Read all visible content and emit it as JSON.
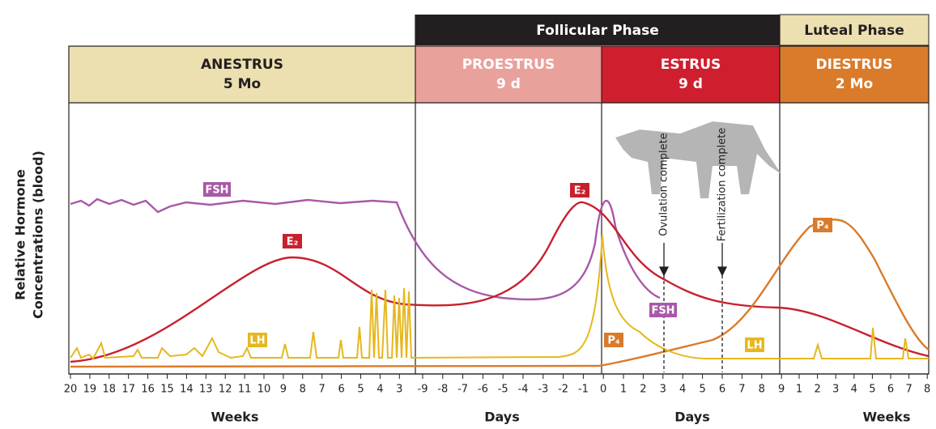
{
  "phases": [
    {
      "label": "Follicular Phase"
    },
    {
      "label": "Luteal Phase"
    }
  ],
  "stages": [
    {
      "name": "ANESTRUS",
      "duration": "5 Mo"
    },
    {
      "name": "PROESTRUS",
      "duration": "9 d"
    },
    {
      "name": "ESTRUS",
      "duration": "9 d"
    },
    {
      "name": "DIESTRUS",
      "duration": "2 Mo"
    }
  ],
  "y_axis_label": [
    "Relative Hormone",
    "Concentrations (blood)"
  ],
  "hormone_labels": [
    "FSH",
    "E₂",
    "LH",
    "E₂",
    "FSH",
    "P₄",
    "LH",
    "P₄"
  ],
  "annotations": [
    "Ovulation complete",
    "Fertilization complete"
  ],
  "axis": {
    "segments": [
      {
        "title": "Weeks",
        "ticks": [
          "20",
          "19",
          "18",
          "17",
          "16",
          "15",
          "14",
          "13",
          "12",
          "11",
          "10",
          "9",
          "8",
          "7",
          "6",
          "5",
          "4",
          "3"
        ]
      },
      {
        "title": "Days",
        "ticks": [
          "-9",
          "-8",
          "-7",
          "-6",
          "-5",
          "-4",
          "-3",
          "-2",
          "-1",
          "0"
        ]
      },
      {
        "title": "Days",
        "ticks": [
          "1",
          "2",
          "3",
          "4",
          "5",
          "6",
          "7",
          "8",
          "9"
        ]
      },
      {
        "title": "Weeks",
        "ticks": [
          "1",
          "2",
          "3",
          "4",
          "5",
          "6",
          "7",
          "8"
        ]
      }
    ]
  }
}
